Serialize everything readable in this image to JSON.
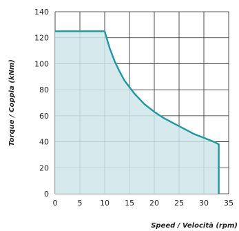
{
  "chart_data": {
    "type": "area",
    "title": "",
    "xlabel": "Speed / Velocità (rpm)",
    "ylabel": "Torque / Coppia (kNm)",
    "xlim": [
      0,
      35
    ],
    "ylim": [
      0,
      140
    ],
    "xticks": [
      0,
      5,
      10,
      15,
      20,
      25,
      30,
      35
    ],
    "yticks": [
      0,
      20,
      40,
      60,
      80,
      100,
      120,
      140
    ],
    "grid": true,
    "colors": {
      "fill": "#cfe6ea",
      "line": "#1a9aa0",
      "grid": "#222222"
    },
    "series": [
      {
        "x": [
          0,
          10,
          11,
          12,
          13,
          14,
          15,
          16,
          18,
          20,
          22,
          24,
          26,
          28,
          30,
          32,
          33,
          33
        ],
        "y": [
          125,
          125,
          112,
          102,
          94,
          87,
          82,
          77,
          69,
          63,
          58,
          54,
          50,
          46,
          43,
          40,
          38,
          0
        ]
      }
    ]
  }
}
